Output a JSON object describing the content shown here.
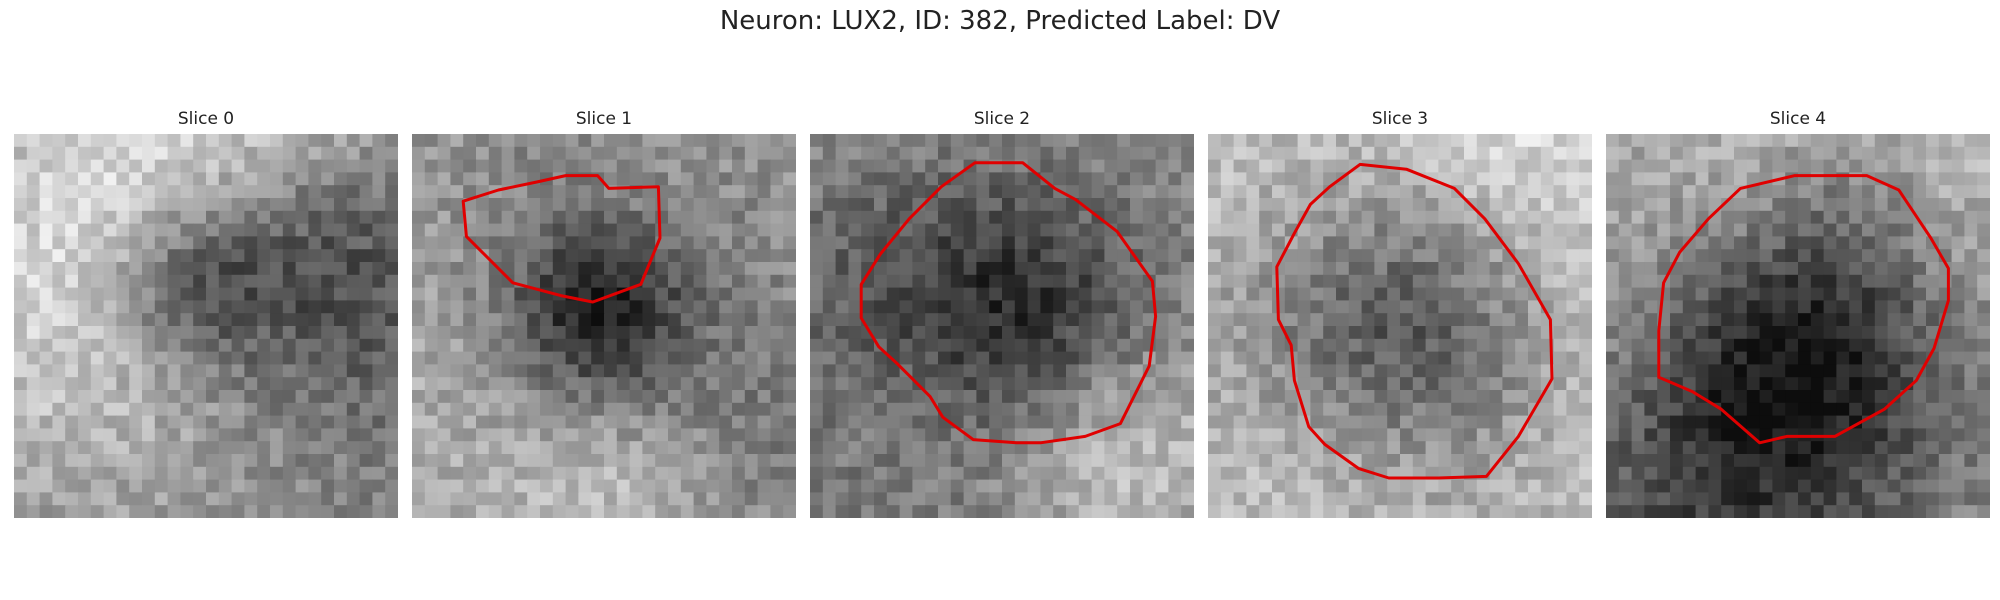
{
  "figure": {
    "title": "Neuron: LUX2, ID: 382, Predicted Label: DV"
  },
  "colors": {
    "contour": "#e00000"
  },
  "grid": {
    "cells": 30
  },
  "slices": [
    {
      "label": "Slice 0",
      "has_contour": false,
      "dark_center": [
        0.45,
        0.38
      ],
      "dark_radius": 0.17,
      "base": 0.55,
      "contour": []
    },
    {
      "label": "Slice 1",
      "has_contour": true,
      "dark_center": [
        0.48,
        0.47
      ],
      "dark_radius": 0.16,
      "base": 0.62,
      "contour": [
        [
          12.3,
          3.4
        ],
        [
          15.4,
          3.3
        ],
        [
          15.5,
          6.5
        ],
        [
          14.3,
          9.4
        ],
        [
          11.3,
          10.5
        ],
        [
          9.3,
          10.1
        ],
        [
          6.3,
          9.3
        ],
        [
          4.4,
          7.4
        ],
        [
          3.4,
          6.4
        ],
        [
          3.2,
          4.2
        ],
        [
          5.4,
          3.5
        ],
        [
          7.8,
          3.0
        ],
        [
          9.6,
          2.6
        ],
        [
          11.6,
          2.6
        ]
      ]
    },
    {
      "label": "Slice 2",
      "has_contour": true,
      "dark_center": [
        0.52,
        0.47
      ],
      "dark_radius": 0.26,
      "base": 0.58,
      "contour": [
        [
          10.3,
          1.8
        ],
        [
          13.3,
          1.8
        ],
        [
          15.3,
          3.4
        ],
        [
          16.6,
          4.1
        ],
        [
          19.2,
          6.1
        ],
        [
          21.4,
          9.2
        ],
        [
          21.6,
          11.4
        ],
        [
          21.2,
          14.5
        ],
        [
          19.4,
          18.1
        ],
        [
          17.2,
          18.9
        ],
        [
          14.4,
          19.3
        ],
        [
          12.9,
          19.3
        ],
        [
          10.2,
          19.1
        ],
        [
          8.3,
          17.7
        ],
        [
          7.5,
          16.4
        ],
        [
          5.5,
          14.4
        ],
        [
          4.3,
          13.3
        ],
        [
          3.2,
          11.5
        ],
        [
          3.2,
          9.4
        ],
        [
          4.4,
          7.5
        ],
        [
          6.2,
          5.3
        ],
        [
          8.2,
          3.3
        ]
      ]
    },
    {
      "label": "Slice 3",
      "has_contour": true,
      "dark_center": [
        0.48,
        0.52
      ],
      "dark_radius": 0.28,
      "base": 0.64,
      "contour": [
        [
          9.5,
          1.9
        ],
        [
          12.4,
          2.2
        ],
        [
          15.4,
          3.4
        ],
        [
          17.3,
          5.3
        ],
        [
          19.4,
          8.1
        ],
        [
          21.4,
          11.6
        ],
        [
          21.5,
          15.3
        ],
        [
          19.4,
          18.9
        ],
        [
          17.4,
          21.4
        ],
        [
          14.4,
          21.5
        ],
        [
          11.3,
          21.5
        ],
        [
          9.4,
          20.9
        ],
        [
          7.3,
          19.4
        ],
        [
          6.3,
          18.3
        ],
        [
          5.4,
          15.4
        ],
        [
          5.2,
          13.2
        ],
        [
          4.4,
          11.6
        ],
        [
          4.3,
          8.3
        ],
        [
          5.4,
          6.2
        ],
        [
          6.4,
          4.4
        ],
        [
          7.6,
          3.3
        ]
      ]
    },
    {
      "label": "Slice 4",
      "has_contour": true,
      "dark_center": [
        0.55,
        0.52
      ],
      "dark_radius": 0.24,
      "base": 0.58,
      "contour": [
        [
          11.8,
          2.6
        ],
        [
          14.4,
          2.6
        ],
        [
          16.3,
          2.6
        ],
        [
          18.3,
          3.5
        ],
        [
          20.3,
          6.5
        ],
        [
          21.4,
          8.4
        ],
        [
          21.4,
          10.4
        ],
        [
          20.5,
          13.4
        ],
        [
          19.4,
          15.4
        ],
        [
          17.4,
          17.2
        ],
        [
          14.3,
          18.9
        ],
        [
          11.3,
          18.9
        ],
        [
          9.6,
          19.3
        ],
        [
          7.2,
          17.2
        ],
        [
          5.4,
          16.1
        ],
        [
          3.3,
          15.2
        ],
        [
          3.3,
          12.3
        ],
        [
          3.6,
          9.3
        ],
        [
          4.6,
          7.4
        ],
        [
          6.4,
          5.3
        ],
        [
          8.4,
          3.4
        ]
      ]
    }
  ]
}
